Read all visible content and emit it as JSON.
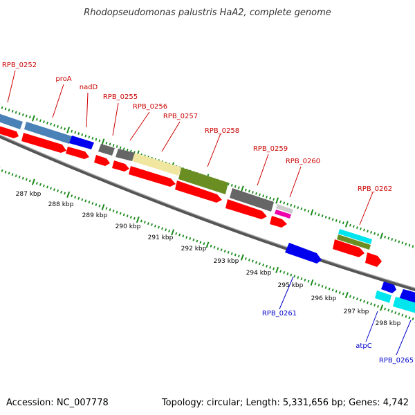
{
  "title": "Rhodopseudomonas palustris HaA2, complete genome",
  "footer": {
    "accession": "Accession: NC_007778",
    "summary": "Topology: circular; Length: 5,331,656 bp; Genes: 4,742"
  },
  "kbp_labels": [
    "287 kbp",
    "288 kbp",
    "289 kbp",
    "290 kbp",
    "291 kbp",
    "292 kbp",
    "293 kbp",
    "294 kbp",
    "295 kbp",
    "296 kbp",
    "297 kbp",
    "298 kbp"
  ],
  "top_gene_labels": [
    "RPB_0252",
    "proA",
    "nadD",
    "RPB_0255",
    "RPB_0256",
    "RPB_0257",
    "RPB_0258",
    "RPB_0259",
    "RPB_0260",
    "RPB_0262"
  ],
  "bottom_gene_labels": [
    "RPB_0261",
    "atpC",
    "RPB_0265"
  ],
  "colors": {
    "cds": "#ff0000",
    "blue": "#0000ee",
    "steel": "#4a82b8",
    "grey": "#666666",
    "khaki": "#f0e6a0",
    "olive": "#6b8e23",
    "cyan": "#00e5ee",
    "tick": "#1a8a1a",
    "top_label": "#cc0000",
    "bottom_label": "#0000cc"
  }
}
